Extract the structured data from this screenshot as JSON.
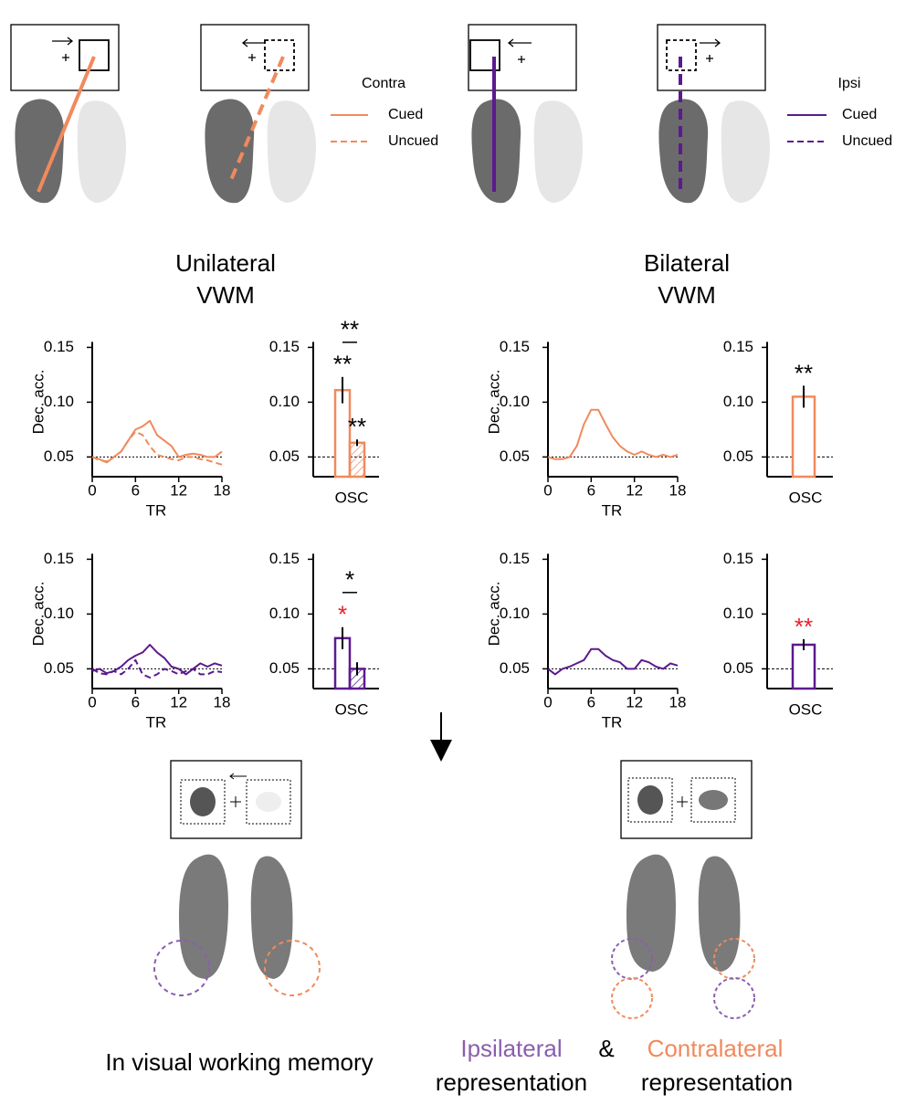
{
  "legends": [
    {
      "title": "Contra",
      "entries": [
        "Cued",
        "Uncued"
      ],
      "color": "#f08a5d"
    },
    {
      "title": "Ipsi",
      "entries": [
        "Cued",
        "Uncued"
      ],
      "color": "#5b1a8e"
    }
  ],
  "panel_titles": [
    [
      "Unilateral",
      "VWM"
    ],
    [
      "Bilateral",
      "VWM"
    ]
  ],
  "caption": {
    "left": "In visual working memory",
    "ipsi": [
      "Ipsilateral",
      "representation"
    ],
    "and": "&",
    "contra": [
      "Contralateral",
      "representation"
    ],
    "ipsi_color": "#8a5fae",
    "contra_color": "#f08a5d"
  },
  "chart_data": [
    {
      "type": "line",
      "xlabel": "TR",
      "ylabel": "Dec. acc.",
      "x": [
        0,
        1,
        2,
        3,
        4,
        5,
        6,
        7,
        8,
        9,
        10,
        11,
        12,
        13,
        14,
        15,
        16,
        17,
        18
      ],
      "xlim": [
        0,
        18
      ],
      "xticks": [
        0,
        6,
        12,
        18
      ],
      "ylim": [
        0.032,
        0.155
      ],
      "yticks": [
        0.05,
        {
          "value": 0.1,
          "label": "0.10"
        },
        0.15
      ],
      "chance": 0.05,
      "series": [
        {
          "color": "#f08a5d",
          "dash": false,
          "values": [
            0.05,
            0.048,
            0.045,
            0.05,
            0.055,
            0.065,
            0.075,
            0.078,
            0.083,
            0.07,
            0.065,
            0.06,
            0.05,
            0.052,
            0.053,
            0.052,
            0.05,
            0.05,
            0.055
          ]
        },
        {
          "color": "#f08a5d",
          "dash": true,
          "values": [
            0.05,
            0.047,
            0.046,
            0.05,
            0.055,
            0.065,
            0.073,
            0.07,
            0.06,
            0.052,
            0.05,
            0.048,
            0.047,
            0.05,
            0.05,
            0.048,
            0.047,
            0.045,
            0.043
          ]
        }
      ]
    },
    {
      "type": "bar",
      "categories": [
        "OSC"
      ],
      "ylim": [
        0.032,
        0.155
      ],
      "yticks": [
        0.05,
        {
          "value": 0.1,
          "label": "0.10"
        },
        0.15
      ],
      "chance": 0.05,
      "comparison": "**",
      "series": [
        {
          "color": "#f08a5d",
          "hatch": false,
          "values": [
            0.111
          ],
          "errors": [
            0.012
          ],
          "star": "**",
          "star_color": "#000000"
        },
        {
          "color": "#f08a5d",
          "hatch": true,
          "values": [
            0.063
          ],
          "errors": [
            0.003
          ],
          "star": "**",
          "star_color": "#000000"
        }
      ]
    },
    {
      "type": "line",
      "xlabel": "TR",
      "ylabel": "Dec. acc.",
      "x": [
        0,
        1,
        2,
        3,
        4,
        5,
        6,
        7,
        8,
        9,
        10,
        11,
        12,
        13,
        14,
        15,
        16,
        17,
        18
      ],
      "xlim": [
        0,
        18
      ],
      "xticks": [
        0,
        6,
        12,
        18
      ],
      "ylim": [
        0.032,
        0.155
      ],
      "yticks": [
        0.05,
        {
          "value": 0.1,
          "label": "0.10"
        },
        0.15
      ],
      "chance": 0.05,
      "series": [
        {
          "color": "#f08a5d",
          "dash": false,
          "values": [
            0.05,
            0.048,
            0.048,
            0.05,
            0.06,
            0.08,
            0.093,
            0.093,
            0.08,
            0.068,
            0.06,
            0.055,
            0.052,
            0.055,
            0.052,
            0.05,
            0.052,
            0.05,
            0.052
          ]
        }
      ]
    },
    {
      "type": "bar",
      "categories": [
        "OSC"
      ],
      "ylim": [
        0.032,
        0.155
      ],
      "yticks": [
        0.05,
        {
          "value": 0.1,
          "label": "0.10"
        },
        0.15
      ],
      "chance": 0.05,
      "series": [
        {
          "color": "#f08a5d",
          "hatch": false,
          "values": [
            0.105
          ],
          "errors": [
            0.01
          ],
          "star": "**",
          "star_color": "#000000"
        }
      ]
    },
    {
      "type": "line",
      "xlabel": "TR",
      "ylabel": "Dec. acc.",
      "x": [
        0,
        1,
        2,
        3,
        4,
        5,
        6,
        7,
        8,
        9,
        10,
        11,
        12,
        13,
        14,
        15,
        16,
        17,
        18
      ],
      "xlim": [
        0,
        18
      ],
      "xticks": [
        0,
        6,
        12,
        18
      ],
      "ylim": [
        0.032,
        0.155
      ],
      "yticks": [
        0.05,
        {
          "value": 0.1,
          "label": "0.10"
        },
        0.15
      ],
      "chance": 0.05,
      "series": [
        {
          "color": "#5b1a8e",
          "dash": false,
          "values": [
            0.048,
            0.05,
            0.046,
            0.048,
            0.052,
            0.058,
            0.062,
            0.065,
            0.072,
            0.065,
            0.06,
            0.052,
            0.05,
            0.045,
            0.05,
            0.055,
            0.052,
            0.055,
            0.053
          ]
        },
        {
          "color": "#5b1a8e",
          "dash": true,
          "values": [
            0.05,
            0.046,
            0.045,
            0.048,
            0.045,
            0.05,
            0.058,
            0.045,
            0.042,
            0.045,
            0.05,
            0.048,
            0.045,
            0.048,
            0.05,
            0.045,
            0.045,
            0.048,
            0.047
          ]
        }
      ]
    },
    {
      "type": "bar",
      "categories": [
        "OSC"
      ],
      "ylim": [
        0.032,
        0.155
      ],
      "yticks": [
        0.05,
        {
          "value": 0.1,
          "label": "0.10"
        },
        0.15
      ],
      "chance": 0.05,
      "comparison": "*",
      "series": [
        {
          "color": "#5b1a8e",
          "hatch": false,
          "values": [
            0.078
          ],
          "errors": [
            0.01
          ],
          "star": "*",
          "star_color": "#e8202a"
        },
        {
          "color": "#5b1a8e",
          "hatch": true,
          "values": [
            0.05
          ],
          "errors": [
            0.006
          ]
        }
      ]
    },
    {
      "type": "line",
      "xlabel": "TR",
      "ylabel": "Dec. acc.",
      "x": [
        0,
        1,
        2,
        3,
        4,
        5,
        6,
        7,
        8,
        9,
        10,
        11,
        12,
        13,
        14,
        15,
        16,
        17,
        18
      ],
      "xlim": [
        0,
        18
      ],
      "xticks": [
        0,
        6,
        12,
        18
      ],
      "ylim": [
        0.032,
        0.155
      ],
      "yticks": [
        0.05,
        {
          "value": 0.1,
          "label": "0.10"
        },
        0.15
      ],
      "chance": 0.05,
      "series": [
        {
          "color": "#5b1a8e",
          "dash": false,
          "values": [
            0.05,
            0.045,
            0.05,
            0.052,
            0.055,
            0.058,
            0.068,
            0.068,
            0.062,
            0.058,
            0.056,
            0.05,
            0.05,
            0.058,
            0.056,
            0.052,
            0.05,
            0.055,
            0.053
          ]
        }
      ]
    },
    {
      "type": "bar",
      "categories": [
        "OSC"
      ],
      "ylim": [
        0.032,
        0.155
      ],
      "yticks": [
        0.05,
        {
          "value": 0.1,
          "label": "0.10"
        },
        0.15
      ],
      "chance": 0.05,
      "series": [
        {
          "color": "#5b1a8e",
          "hatch": false,
          "values": [
            0.072
          ],
          "errors": [
            0.005
          ],
          "star": "**",
          "star_color": "#e8202a"
        }
      ]
    }
  ]
}
